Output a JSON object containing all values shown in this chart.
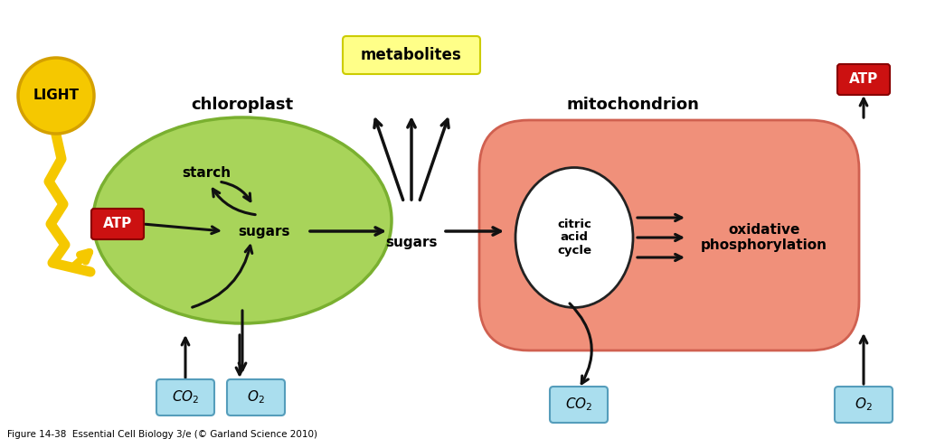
{
  "bg_color": "#ffffff",
  "chloroplast_color": "#a8d45a",
  "chloroplast_edge": "#7ab030",
  "mito_color": "#f0907a",
  "mito_edge": "#d06050",
  "citric_fill": "#ffffff",
  "citric_edge": "#222222",
  "light_fill": "#f5c800",
  "light_edge": "#d4a000",
  "atp_fill": "#cc1111",
  "atp_edge": "#880000",
  "atp_text": "#ffffff",
  "co2_o2_fill": "#aadeee",
  "co2_o2_edge": "#559dbb",
  "meta_fill": "#ffff88",
  "meta_edge": "#cccc00",
  "arrow_color": "#111111",
  "label_chloroplast": "chloroplast",
  "label_mito": "mitochondrion",
  "label_citric": "citric\nacid\ncycle",
  "label_oxidative": "oxidative\nphosphorylation",
  "label_sugars_in": "sugars",
  "label_sugars_out": "sugars",
  "label_starch": "starch",
  "label_metabolites": "metabolites",
  "label_light": "LIGHT",
  "label_atp": "ATP",
  "caption": "Figure 14-38  Essential Cell Biology 3/e (© Garland Science 2010)",
  "figsize": [
    10.24,
    4.96
  ],
  "dpi": 100
}
